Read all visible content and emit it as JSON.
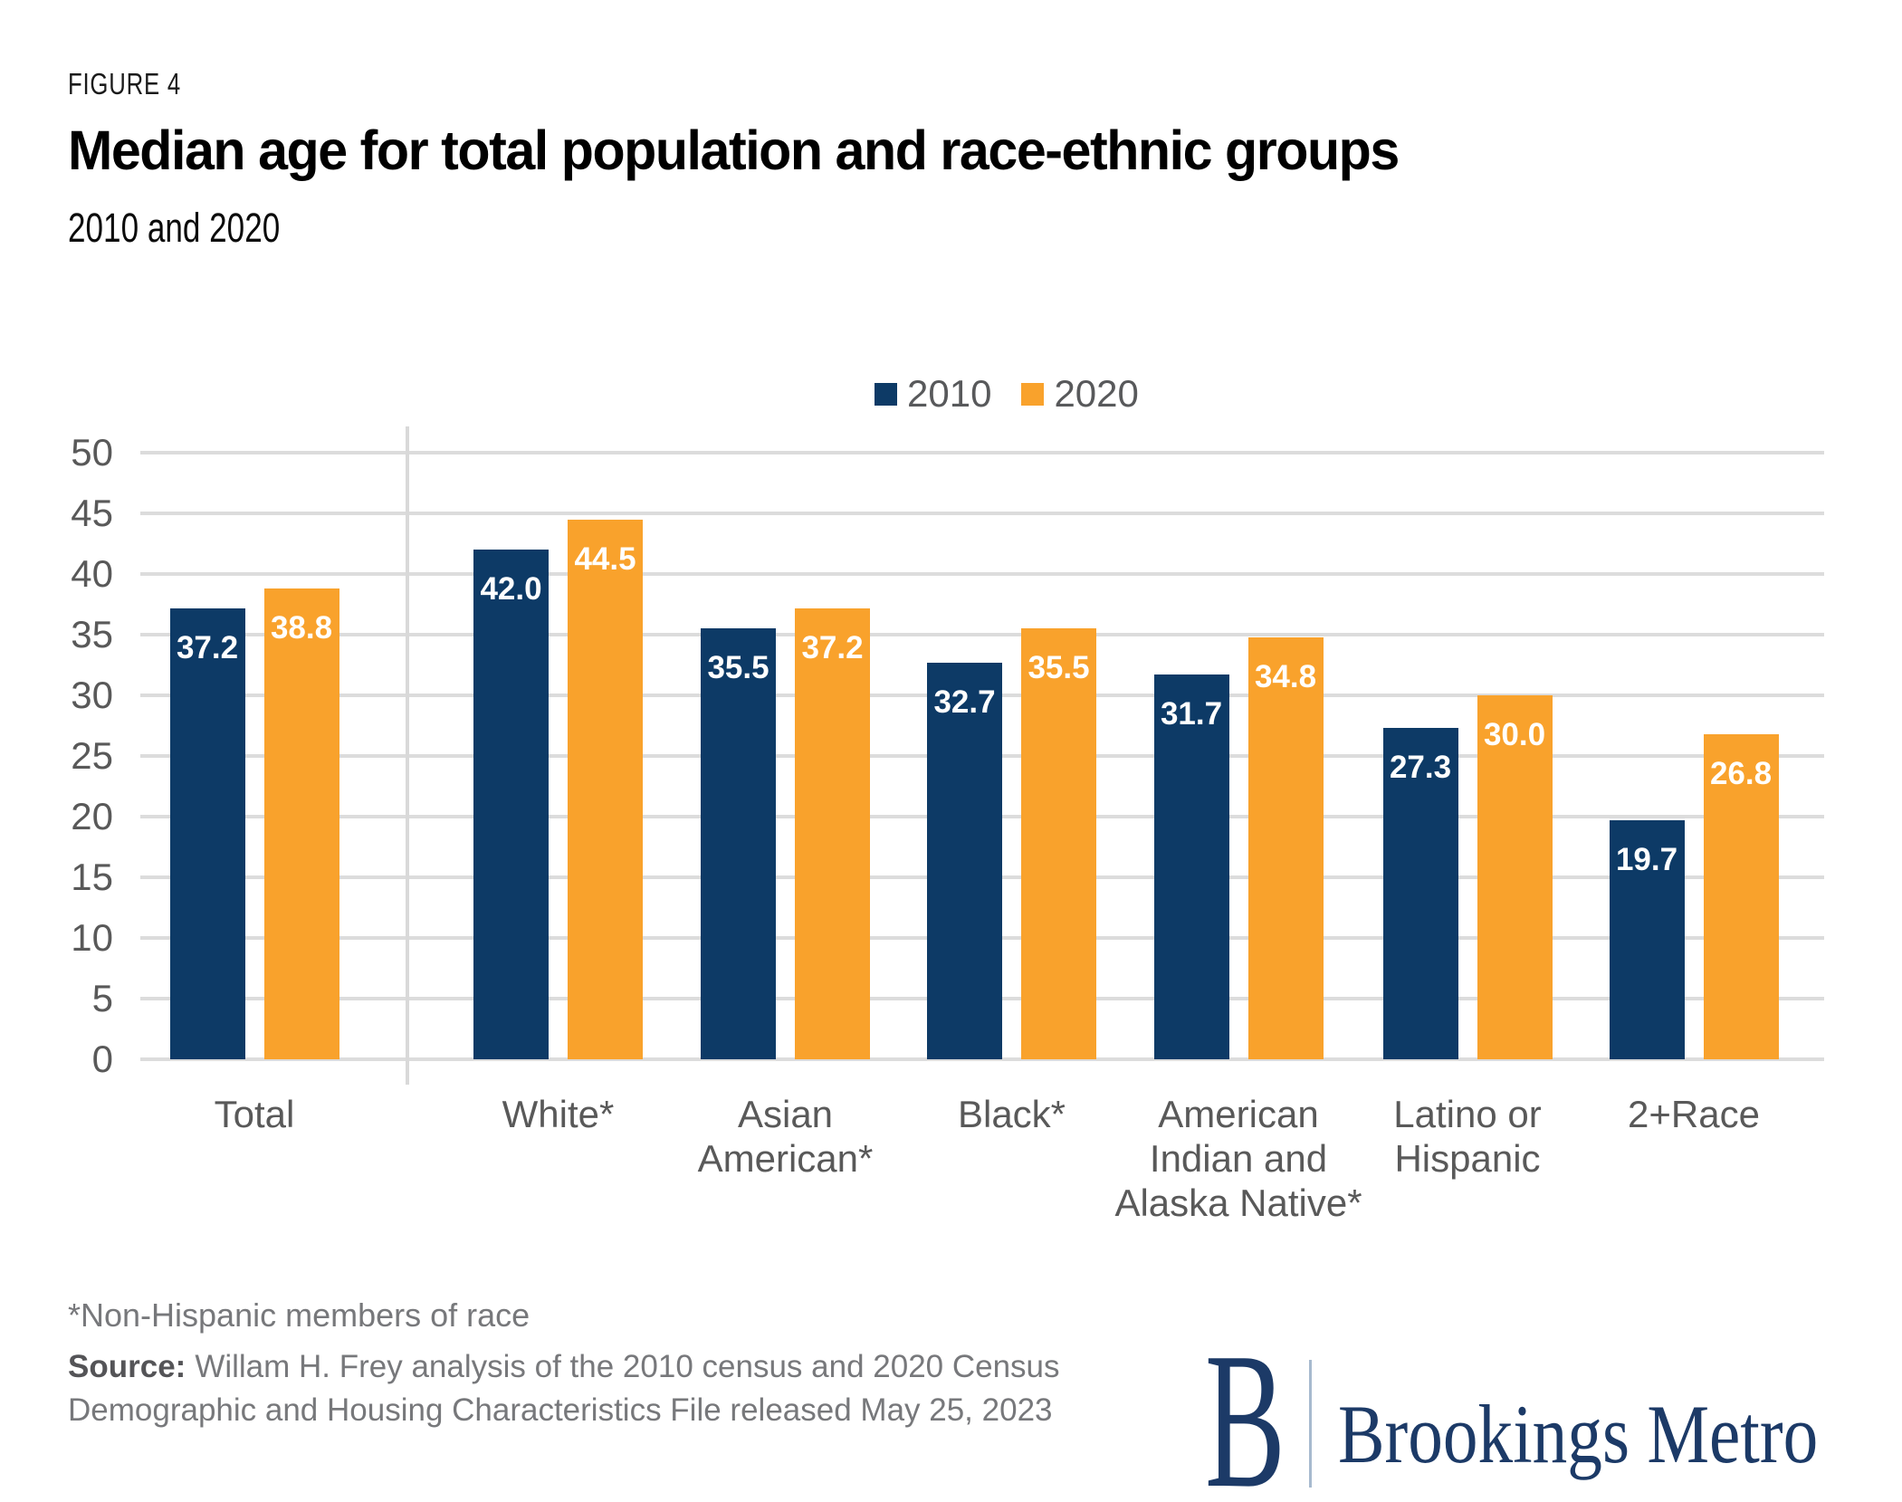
{
  "header": {
    "figure_label": "FIGURE 4",
    "title": "Median age for total population and race-ethnic groups",
    "subtitle": "2010 and 2020"
  },
  "footer": {
    "footnote": "*Non-Hispanic members of race",
    "source_label": "Source:",
    "source_text": "Willam H. Frey analysis of the 2010 census and 2020 Census\nDemographic and Housing Characteristics File released May 25, 2023"
  },
  "logo": {
    "initial": "B",
    "wordmark": "Brookings Metro"
  },
  "colors": {
    "navy": "#0D3A66",
    "orange": "#F9A22C",
    "axis_text": "#595959",
    "gridline": "#DCDCDC",
    "logo_navy": "#1C3A67"
  },
  "chart_data": {
    "type": "bar",
    "title": "Median age for total population and race-ethnic groups",
    "subtitle": "2010 and 2020",
    "categories": [
      "Total",
      "White*",
      "Asian\nAmerican*",
      "Black*",
      "American\nIndian and\nAlaska Native*",
      "Latino or\nHispanic",
      "2+Race"
    ],
    "series": [
      {
        "name": "2010",
        "color": "#0D3A66",
        "values": [
          37.2,
          42.0,
          35.5,
          32.7,
          31.7,
          27.3,
          19.7
        ]
      },
      {
        "name": "2020",
        "color": "#F9A22C",
        "values": [
          38.8,
          44.5,
          37.2,
          35.5,
          34.8,
          30.0,
          26.8
        ]
      }
    ],
    "xlabel": "",
    "ylabel": "",
    "ylim": [
      0,
      50
    ],
    "yticks": [
      0,
      5,
      10,
      15,
      20,
      25,
      30,
      35,
      40,
      45,
      50
    ],
    "grid": "horizontal",
    "legend_position": "top-center",
    "value_labels": "inside bar top, one decimal place, white",
    "separator_after_category": "Total"
  }
}
